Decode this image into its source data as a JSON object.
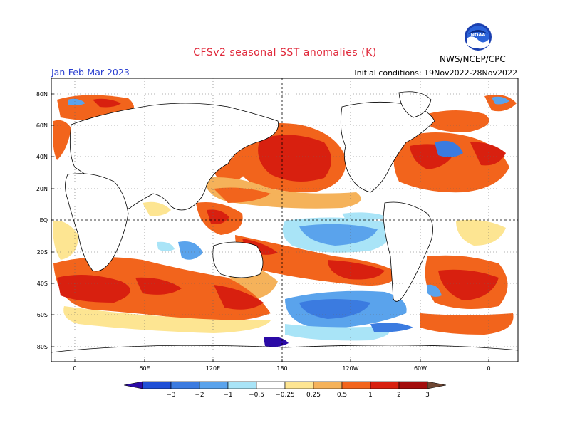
{
  "title": "CFSv2 seasonal SST anomalies (K)",
  "period": "Jan-Feb-Mar 2023",
  "initial_conditions": "Initial conditions: 19Nov2022-28Nov2022",
  "agency": "NWS/NCEP/CPC",
  "logo_text": "NOAA",
  "lat_ticks": [
    "80N",
    "60N",
    "40N",
    "20N",
    "EQ",
    "20S",
    "40S",
    "60S",
    "80S"
  ],
  "lon_ticks": [
    "0",
    "60E",
    "120E",
    "180",
    "120W",
    "60W",
    "0"
  ],
  "colorbar": {
    "labels": [
      "-3",
      "-2",
      "-1",
      "-0.5",
      "-0.25",
      "0.25",
      "0.5",
      "1",
      "2",
      "3"
    ],
    "colors": [
      "#2b0aa6",
      "#1f4fd6",
      "#3b7be0",
      "#5aa3ec",
      "#a9e4f7",
      "#ffffff",
      "#fde592",
      "#f5b25a",
      "#f2641c",
      "#d8200f",
      "#a30d0d",
      "#6e4632"
    ]
  }
}
